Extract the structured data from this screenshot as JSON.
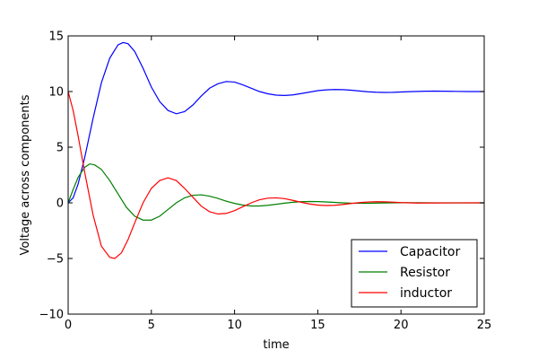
{
  "chart_data": {
    "type": "line",
    "xlabel": "time",
    "ylabel": "Voltage across components",
    "xlim": [
      0,
      25
    ],
    "ylim": [
      -10,
      15
    ],
    "xticks": [
      0,
      5,
      10,
      15,
      20,
      25
    ],
    "yticks": [
      -10,
      -5,
      0,
      5,
      10,
      15
    ],
    "grid": false,
    "legend_position": "lower-right",
    "series": [
      {
        "name": "Capacitor",
        "color": "#0000ff",
        "points": [
          [
            0,
            0
          ],
          [
            0.3,
            0.45
          ],
          [
            0.6,
            1.7
          ],
          [
            1,
            4.1
          ],
          [
            1.5,
            7.6
          ],
          [
            2,
            10.8
          ],
          [
            2.5,
            13.0
          ],
          [
            3,
            14.2
          ],
          [
            3.3,
            14.4
          ],
          [
            3.6,
            14.3
          ],
          [
            4,
            13.6
          ],
          [
            4.5,
            12.1
          ],
          [
            5,
            10.4
          ],
          [
            5.5,
            9.1
          ],
          [
            6,
            8.3
          ],
          [
            6.5,
            8.0
          ],
          [
            7,
            8.2
          ],
          [
            7.5,
            8.8
          ],
          [
            8,
            9.6
          ],
          [
            8.5,
            10.3
          ],
          [
            9,
            10.7
          ],
          [
            9.5,
            10.9
          ],
          [
            10,
            10.85
          ],
          [
            10.5,
            10.6
          ],
          [
            11,
            10.3
          ],
          [
            11.5,
            10.0
          ],
          [
            12,
            9.8
          ],
          [
            12.5,
            9.68
          ],
          [
            13,
            9.65
          ],
          [
            13.5,
            9.7
          ],
          [
            14,
            9.82
          ],
          [
            14.5,
            9.95
          ],
          [
            15,
            10.08
          ],
          [
            15.5,
            10.15
          ],
          [
            16,
            10.18
          ],
          [
            16.5,
            10.17
          ],
          [
            17,
            10.12
          ],
          [
            17.5,
            10.05
          ],
          [
            18,
            9.98
          ],
          [
            18.5,
            9.94
          ],
          [
            19,
            9.92
          ],
          [
            19.5,
            9.93
          ],
          [
            20,
            9.96
          ],
          [
            20.5,
            9.99
          ],
          [
            21,
            10.01
          ],
          [
            21.5,
            10.03
          ],
          [
            22,
            10.04
          ],
          [
            22.5,
            10.03
          ],
          [
            23,
            10.02
          ],
          [
            24,
            10.0
          ],
          [
            25,
            10.0
          ]
        ]
      },
      {
        "name": "Resistor",
        "color": "#008000",
        "points": [
          [
            0,
            0
          ],
          [
            0.3,
            1.2
          ],
          [
            0.6,
            2.3
          ],
          [
            1,
            3.2
          ],
          [
            1.3,
            3.5
          ],
          [
            1.6,
            3.4
          ],
          [
            2,
            3.0
          ],
          [
            2.5,
            2.0
          ],
          [
            3,
            0.8
          ],
          [
            3.5,
            -0.4
          ],
          [
            4,
            -1.2
          ],
          [
            4.5,
            -1.55
          ],
          [
            5,
            -1.55
          ],
          [
            5.5,
            -1.2
          ],
          [
            6,
            -0.6
          ],
          [
            6.5,
            0.0
          ],
          [
            7,
            0.45
          ],
          [
            7.5,
            0.68
          ],
          [
            8,
            0.72
          ],
          [
            8.5,
            0.6
          ],
          [
            9,
            0.4
          ],
          [
            9.5,
            0.15
          ],
          [
            10,
            -0.05
          ],
          [
            10.5,
            -0.2
          ],
          [
            11,
            -0.28
          ],
          [
            11.5,
            -0.28
          ],
          [
            12,
            -0.22
          ],
          [
            12.5,
            -0.13
          ],
          [
            13,
            -0.03
          ],
          [
            13.5,
            0.05
          ],
          [
            14,
            0.1
          ],
          [
            14.5,
            0.12
          ],
          [
            15,
            0.11
          ],
          [
            15.5,
            0.08
          ],
          [
            16,
            0.04
          ],
          [
            16.5,
            0.0
          ],
          [
            17,
            -0.03
          ],
          [
            18,
            -0.04
          ],
          [
            19,
            -0.01
          ],
          [
            20,
            0.01
          ],
          [
            21,
            0.01
          ],
          [
            22,
            0.0
          ],
          [
            25,
            0.0
          ]
        ]
      },
      {
        "name": "inductor",
        "color": "#ff0000",
        "points": [
          [
            0,
            10
          ],
          [
            0.3,
            8.3
          ],
          [
            0.6,
            6.0
          ],
          [
            1,
            2.7
          ],
          [
            1.5,
            -1.1
          ],
          [
            2,
            -3.9
          ],
          [
            2.5,
            -4.9
          ],
          [
            2.8,
            -5.0
          ],
          [
            3.2,
            -4.5
          ],
          [
            3.6,
            -3.3
          ],
          [
            4,
            -1.8
          ],
          [
            4.5,
            0.0
          ],
          [
            5,
            1.3
          ],
          [
            5.5,
            2.0
          ],
          [
            6,
            2.25
          ],
          [
            6.5,
            2.0
          ],
          [
            7,
            1.3
          ],
          [
            7.5,
            0.5
          ],
          [
            8,
            -0.3
          ],
          [
            8.5,
            -0.8
          ],
          [
            9,
            -1.0
          ],
          [
            9.5,
            -0.95
          ],
          [
            10,
            -0.7
          ],
          [
            10.5,
            -0.35
          ],
          [
            11,
            0.0
          ],
          [
            11.5,
            0.28
          ],
          [
            12,
            0.42
          ],
          [
            12.5,
            0.45
          ],
          [
            13,
            0.38
          ],
          [
            13.5,
            0.22
          ],
          [
            14,
            0.05
          ],
          [
            14.5,
            -0.1
          ],
          [
            15,
            -0.2
          ],
          [
            15.5,
            -0.24
          ],
          [
            16,
            -0.22
          ],
          [
            16.5,
            -0.15
          ],
          [
            17,
            -0.06
          ],
          [
            17.5,
            0.02
          ],
          [
            18,
            0.07
          ],
          [
            18.5,
            0.1
          ],
          [
            19,
            0.09
          ],
          [
            19.5,
            0.06
          ],
          [
            20,
            0.02
          ],
          [
            21,
            -0.02
          ],
          [
            22,
            -0.01
          ],
          [
            25,
            0.0
          ]
        ]
      }
    ]
  }
}
